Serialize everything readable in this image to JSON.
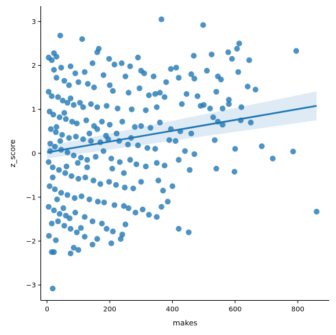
{
  "chart_data": {
    "type": "scatter",
    "title": "",
    "xlabel": "makes",
    "ylabel": "z_score",
    "xlim": [
      -20,
      900
    ],
    "ylim": [
      -3.35,
      3.35
    ],
    "x_ticks": [
      0,
      200,
      400,
      600,
      800
    ],
    "y_ticks": [
      -3,
      -2,
      -1,
      0,
      1,
      2,
      3
    ],
    "x_tick_labels": [
      "0",
      "200",
      "400",
      "600",
      "800"
    ],
    "y_tick_labels": [
      "−3",
      "−2",
      "−1",
      "0",
      "1",
      "2",
      "3"
    ],
    "grid": false,
    "legend": "none",
    "point_color": "#1f77b4",
    "regression": {
      "x": [
        0,
        860
      ],
      "y": [
        0.02,
        1.08
      ],
      "ci_lower": [
        -0.12,
        0.75
      ],
      "ci_upper": [
        0.16,
        1.41
      ]
    },
    "points": [
      [
        365,
        3.05
      ],
      [
        498,
        2.92
      ],
      [
        42,
        2.68
      ],
      [
        112,
        2.6
      ],
      [
        613,
        2.5
      ],
      [
        606,
        2.38
      ],
      [
        795,
        2.33
      ],
      [
        165,
        2.38
      ],
      [
        160,
        2.3
      ],
      [
        22,
        2.28
      ],
      [
        30,
        2.2
      ],
      [
        5,
        2.18
      ],
      [
        645,
        2.12
      ],
      [
        15,
        2.12
      ],
      [
        198,
        2.15
      ],
      [
        290,
        2.18
      ],
      [
        468,
        2.22
      ],
      [
        525,
        2.25
      ],
      [
        578,
        2.3
      ],
      [
        590,
        2.15
      ],
      [
        145,
        2.05
      ],
      [
        215,
        2.02
      ],
      [
        238,
        2.05
      ],
      [
        265,
        1.98
      ],
      [
        395,
        1.92
      ],
      [
        412,
        1.95
      ],
      [
        22,
        1.9
      ],
      [
        45,
        1.95
      ],
      [
        75,
        1.98
      ],
      [
        90,
        1.82
      ],
      [
        120,
        1.85
      ],
      [
        180,
        1.78
      ],
      [
        250,
        1.75
      ],
      [
        300,
        1.88
      ],
      [
        310,
        1.82
      ],
      [
        340,
        1.75
      ],
      [
        380,
        1.62
      ],
      [
        420,
        1.72
      ],
      [
        460,
        1.8
      ],
      [
        470,
        1.7
      ],
      [
        510,
        1.88
      ],
      [
        545,
        1.75
      ],
      [
        555,
        1.68
      ],
      [
        640,
        1.52
      ],
      [
        665,
        1.45
      ],
      [
        610,
        1.85
      ],
      [
        30,
        1.72
      ],
      [
        55,
        1.65
      ],
      [
        70,
        1.55
      ],
      [
        100,
        1.62
      ],
      [
        130,
        1.58
      ],
      [
        150,
        1.5
      ],
      [
        200,
        1.55
      ],
      [
        210,
        1.42
      ],
      [
        260,
        1.38
      ],
      [
        295,
        1.48
      ],
      [
        325,
        1.32
      ],
      [
        345,
        1.35
      ],
      [
        360,
        1.38
      ],
      [
        375,
        1.28
      ],
      [
        445,
        1.35
      ],
      [
        480,
        1.3
      ],
      [
        540,
        1.4
      ],
      [
        580,
        1.22
      ],
      [
        5,
        1.4
      ],
      [
        15,
        1.3
      ],
      [
        35,
        1.28
      ],
      [
        50,
        1.2
      ],
      [
        65,
        1.15
      ],
      [
        85,
        1.1
      ],
      [
        105,
        1.15
      ],
      [
        140,
        1.12
      ],
      [
        160,
        1.05
      ],
      [
        190,
        1.08
      ],
      [
        225,
        1.02
      ],
      [
        270,
        1.0
      ],
      [
        315,
        0.98
      ],
      [
        350,
        1.05
      ],
      [
        430,
        1.12
      ],
      [
        490,
        1.08
      ],
      [
        500,
        1.1
      ],
      [
        520,
        1.02
      ],
      [
        560,
        1.02
      ],
      [
        580,
        1.12
      ],
      [
        620,
        1.05
      ],
      [
        8,
        0.95
      ],
      [
        20,
        0.88
      ],
      [
        40,
        0.82
      ],
      [
        60,
        0.78
      ],
      [
        80,
        0.72
      ],
      [
        95,
        0.68
      ],
      [
        125,
        0.75
      ],
      [
        150,
        0.62
      ],
      [
        175,
        0.72
      ],
      [
        200,
        0.65
      ],
      [
        240,
        0.72
      ],
      [
        280,
        0.6
      ],
      [
        300,
        0.62
      ],
      [
        330,
        0.58
      ],
      [
        360,
        0.7
      ],
      [
        395,
        0.55
      ],
      [
        425,
        0.5
      ],
      [
        460,
        0.45
      ],
      [
        530,
        0.82
      ],
      [
        545,
        0.72
      ],
      [
        560,
        0.65
      ],
      [
        618,
        0.75
      ],
      [
        650,
        0.7
      ],
      [
        12,
        0.55
      ],
      [
        28,
        0.48
      ],
      [
        48,
        0.42
      ],
      [
        70,
        0.35
      ],
      [
        92,
        0.38
      ],
      [
        115,
        0.32
      ],
      [
        140,
        0.28
      ],
      [
        170,
        0.25
      ],
      [
        195,
        0.32
      ],
      [
        230,
        0.28
      ],
      [
        258,
        0.2
      ],
      [
        290,
        0.18
      ],
      [
        320,
        0.12
      ],
      [
        345,
        0.1
      ],
      [
        390,
        0.3
      ],
      [
        410,
        0.28
      ],
      [
        440,
        0.05
      ],
      [
        470,
        -0.02
      ],
      [
        535,
        0.3
      ],
      [
        600,
        0.1
      ],
      [
        685,
        0.16
      ],
      [
        10,
        0.22
      ],
      [
        25,
        0.15
      ],
      [
        45,
        0.08
      ],
      [
        65,
        0.02
      ],
      [
        85,
        -0.05
      ],
      [
        108,
        -0.1
      ],
      [
        128,
        -0.15
      ],
      [
        155,
        -0.08
      ],
      [
        180,
        0.05
      ],
      [
        205,
        -0.12
      ],
      [
        232,
        -0.2
      ],
      [
        265,
        -0.15
      ],
      [
        285,
        -0.25
      ],
      [
        315,
        -0.3
      ],
      [
        350,
        -0.22
      ],
      [
        375,
        -0.28
      ],
      [
        420,
        -0.15
      ],
      [
        455,
        -0.38
      ],
      [
        540,
        -0.35
      ],
      [
        598,
        -0.42
      ],
      [
        720,
        -0.12
      ],
      [
        785,
        0.04
      ],
      [
        5,
        -0.2
      ],
      [
        18,
        -0.32
      ],
      [
        38,
        -0.38
      ],
      [
        58,
        -0.45
      ],
      [
        78,
        -0.52
      ],
      [
        100,
        -0.58
      ],
      [
        122,
        -0.55
      ],
      [
        148,
        -0.62
      ],
      [
        170,
        -0.7
      ],
      [
        198,
        -0.65
      ],
      [
        220,
        -0.72
      ],
      [
        248,
        -0.78
      ],
      [
        275,
        -0.8
      ],
      [
        300,
        -0.65
      ],
      [
        355,
        -0.62
      ],
      [
        370,
        -0.85
      ],
      [
        400,
        -0.75
      ],
      [
        8,
        -0.75
      ],
      [
        25,
        -0.82
      ],
      [
        45,
        -0.9
      ],
      [
        65,
        -0.95
      ],
      [
        88,
        -1.02
      ],
      [
        110,
        -0.98
      ],
      [
        135,
        -1.05
      ],
      [
        162,
        -1.1
      ],
      [
        182,
        -1.12
      ],
      [
        215,
        -1.18
      ],
      [
        245,
        -1.2
      ],
      [
        260,
        -1.25
      ],
      [
        282,
        -1.35
      ],
      [
        305,
        -1.28
      ],
      [
        325,
        -1.4
      ],
      [
        350,
        -1.45
      ],
      [
        365,
        -1.22
      ],
      [
        385,
        -1.1
      ],
      [
        5,
        -1.22
      ],
      [
        22,
        -1.3
      ],
      [
        40,
        -1.38
      ],
      [
        60,
        -1.42
      ],
      [
        90,
        -1.35
      ],
      [
        120,
        -1.45
      ],
      [
        145,
        -1.55
      ],
      [
        175,
        -1.6
      ],
      [
        190,
        -1.72
      ],
      [
        210,
        -1.78
      ],
      [
        240,
        -1.85
      ],
      [
        250,
        -1.62
      ],
      [
        420,
        -1.72
      ],
      [
        452,
        -1.8
      ],
      [
        860,
        -1.33
      ],
      [
        15,
        -1.6
      ],
      [
        35,
        -1.55
      ],
      [
        55,
        -1.65
      ],
      [
        75,
        -1.72
      ],
      [
        95,
        -1.8
      ],
      [
        120,
        -1.9
      ],
      [
        160,
        -1.95
      ],
      [
        205,
        -2.05
      ],
      [
        235,
        -1.95
      ],
      [
        6,
        -1.88
      ],
      [
        28,
        -1.98
      ],
      [
        85,
        -2.15
      ],
      [
        100,
        -2.2
      ],
      [
        145,
        -2.08
      ],
      [
        15,
        -2.25
      ],
      [
        22,
        -2.25
      ],
      [
        75,
        -2.28
      ],
      [
        18,
        -3.08
      ],
      [
        10,
        0.05
      ],
      [
        30,
        0.6
      ],
      [
        55,
        0.92
      ],
      [
        75,
        1.25
      ],
      [
        115,
        1.05
      ],
      [
        135,
        0.45
      ],
      [
        160,
        0.55
      ],
      [
        188,
        0.4
      ],
      [
        222,
        0.45
      ],
      [
        245,
        -0.45
      ],
      [
        268,
        0.35
      ],
      [
        208,
        -0.35
      ],
      [
        128,
        -0.32
      ],
      [
        98,
        -0.22
      ],
      [
        62,
        -0.3
      ],
      [
        42,
        0.28
      ],
      [
        18,
        -0.55
      ],
      [
        32,
        -1.05
      ],
      [
        52,
        -1.25
      ],
      [
        72,
        -1.48
      ],
      [
        108,
        -1.7
      ]
    ]
  }
}
